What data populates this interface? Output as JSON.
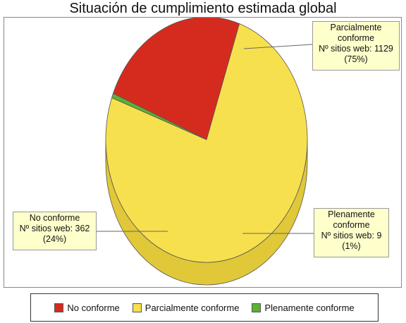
{
  "chart_data": {
    "type": "pie",
    "title": "Situación de cumplimiento estimada global",
    "slices": [
      {
        "label": "No conforme",
        "value": 362,
        "percent": 24,
        "color": "#d52b1e",
        "side": "#b02014",
        "callout": [
          "No conforme",
          "Nº sitios web: 362",
          "(24%)"
        ]
      },
      {
        "label": "Parcialmente conforme",
        "value": 1129,
        "percent": 75,
        "color": "#f7e04d",
        "side": "#e0c838",
        "callout": [
          "Parcialmente",
          "conforme",
          "Nº sitios web: 1129",
          "(75%)"
        ]
      },
      {
        "label": "Plenamente conforme",
        "value": 9,
        "percent": 1,
        "color": "#5bb234",
        "side": "#3f8a22",
        "callout": [
          "Plenamente",
          "conforme",
          "Nº sitios web: 9",
          "(1%)"
        ]
      }
    ],
    "legend": [
      "No conforme",
      "Parcialmente conforme",
      "Plenamente conforme"
    ],
    "legend_position": "bottom",
    "style": "3d"
  }
}
